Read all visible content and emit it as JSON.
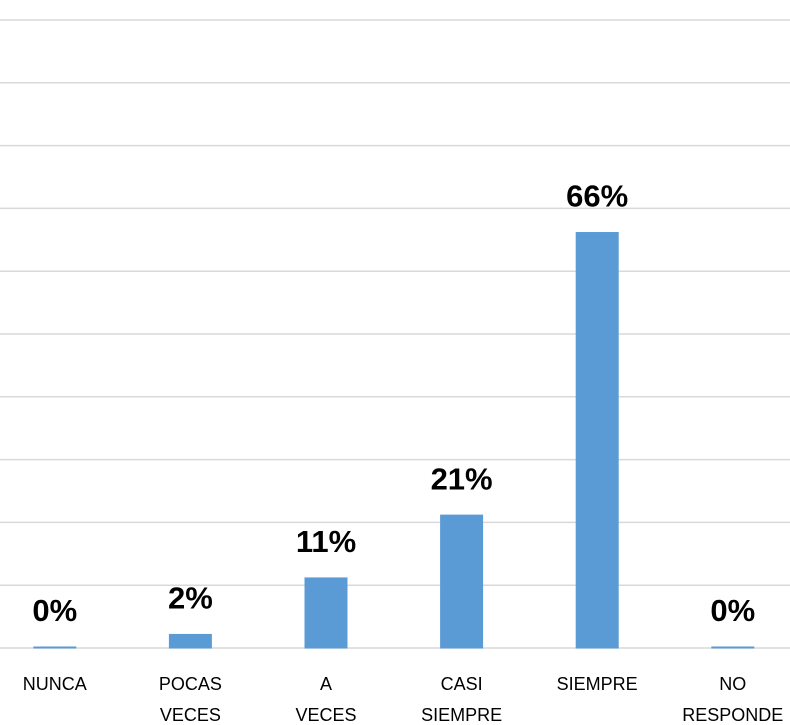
{
  "chart_data": {
    "type": "bar",
    "categories": [
      "NUNCA",
      "POCAS VECES",
      "A VECES",
      "CASI SIEMPRE",
      "SIEMPRE",
      "NO RESPONDE"
    ],
    "values": [
      0,
      2,
      11,
      21,
      66,
      0
    ],
    "value_labels": [
      "0%",
      "2%",
      "11%",
      "21%",
      "66%",
      "0%"
    ],
    "color": "#5b9bd5",
    "ylim": [
      0,
      100
    ],
    "yticks": [
      0,
      10,
      20,
      30,
      40,
      50,
      60,
      70,
      80,
      90,
      100
    ],
    "grid": true
  }
}
